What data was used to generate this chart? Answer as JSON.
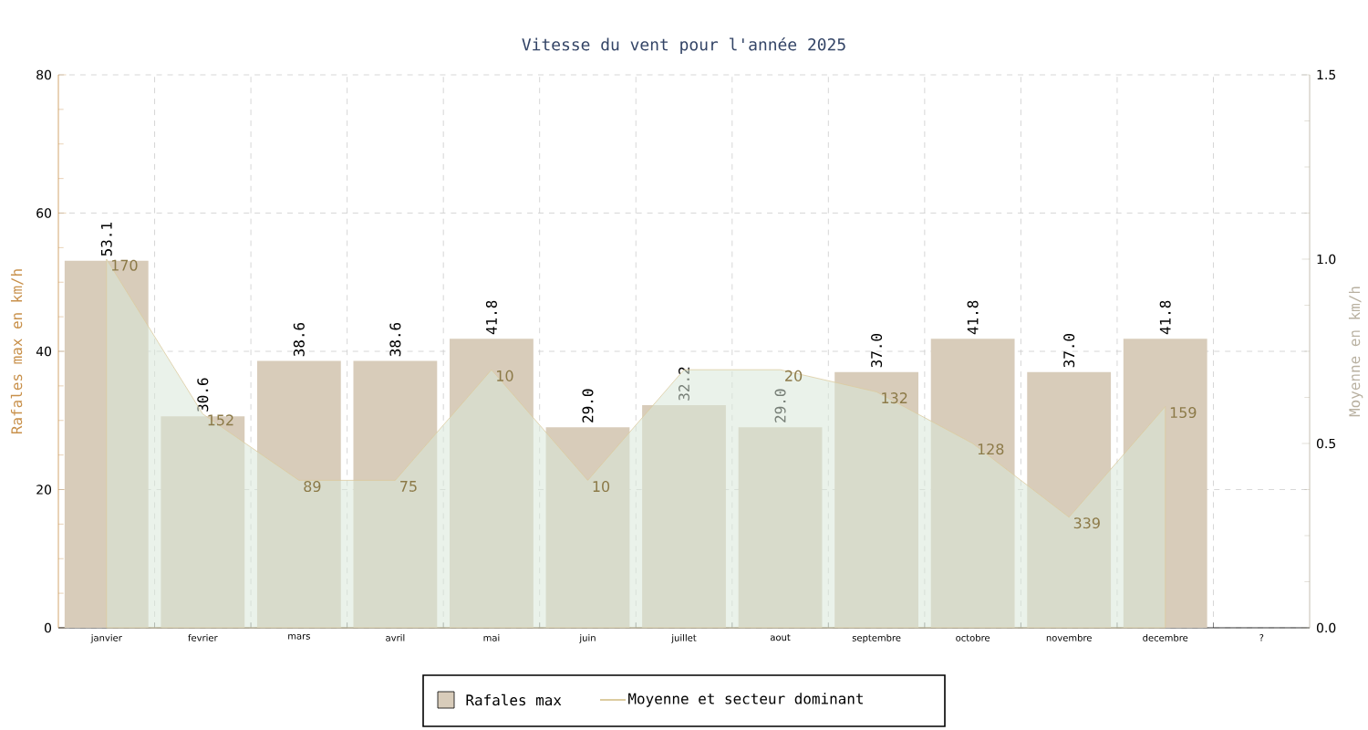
{
  "chart_data": {
    "type": "bar",
    "title": "Vitesse du vent pour l'année 2025",
    "ylabel": "Rafales max en km/h",
    "y2label": "Moyenne en km/h",
    "categories": [
      "janvier",
      "fevrier",
      "mars",
      "avril",
      "mai",
      "juin",
      "juillet",
      "aout",
      "septembre",
      "octobre",
      "novembre",
      "decembre",
      "?"
    ],
    "series": [
      {
        "name": "Rafales max",
        "color": "#d8ccba",
        "values": [
          53.1,
          30.6,
          38.6,
          38.6,
          41.8,
          29.0,
          32.2,
          29.0,
          37.0,
          41.8,
          37.0,
          41.8,
          null
        ],
        "value_labels": [
          "53.1",
          "30.6",
          "38.6",
          "38.6",
          "41.8",
          "29.0",
          "32.2",
          "29.0",
          "37.0",
          "41.8",
          "37.0",
          "41.8",
          null
        ]
      },
      {
        "name": "Moyenne et secteur dominant",
        "type": "area",
        "axis": "y2",
        "color": "#d9e8d9",
        "values": [
          1.0,
          0.58,
          0.4,
          0.4,
          0.7,
          0.4,
          0.7,
          0.7,
          0.64,
          0.5,
          0.3,
          0.6,
          null
        ]
      }
    ],
    "annotations": [
      {
        "text": "170",
        "x": "janvier",
        "y": 53.3
      },
      {
        "text": "152",
        "x": "fevrier",
        "y": 30.9
      },
      {
        "text": "89",
        "x": "mars",
        "y": 21.3
      },
      {
        "text": "75",
        "x": "avril",
        "y": 21.3
      },
      {
        "text": "10",
        "x": "mai",
        "y": 37.3
      },
      {
        "text": "10",
        "x": "juin",
        "y": 21.3
      },
      {
        "text": "20",
        "x": "aout",
        "y": 37.3
      },
      {
        "text": "132",
        "x": "septembre",
        "y": 34.1
      },
      {
        "text": "128",
        "x": "octobre",
        "y": 26.7
      },
      {
        "text": "339",
        "x": "novembre",
        "y": 16
      },
      {
        "text": "159",
        "x": "decembre",
        "y": 32
      }
    ],
    "ylim": [
      0,
      80
    ],
    "yticks": [
      0,
      20,
      40,
      60,
      80
    ],
    "y2lim": [
      0,
      1.5
    ],
    "y2ticks": [
      {
        "value": 0,
        "label": "0.0"
      },
      {
        "value": 0.5,
        "label": "0.5"
      },
      {
        "value": 1.0,
        "label": "1.0"
      },
      {
        "value": 1.5,
        "label": "1.5"
      }
    ],
    "grid": true,
    "legend": "bottom"
  }
}
